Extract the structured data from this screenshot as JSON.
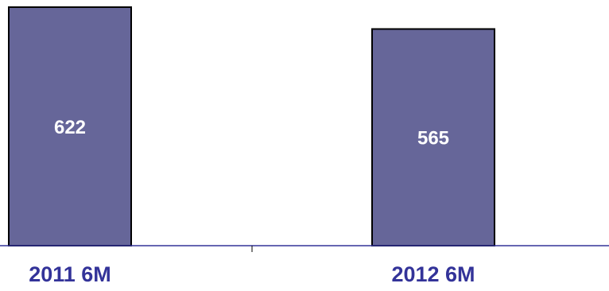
{
  "chart_data": {
    "type": "bar",
    "categories": [
      "2011 6M",
      "2012 6M"
    ],
    "values": [
      622,
      565
    ],
    "title": "",
    "xlabel": "",
    "ylabel": "",
    "grid": false,
    "legend": "none",
    "data_labels": [
      "622",
      "565"
    ]
  },
  "colors": {
    "bar_fill": "#666699",
    "bar_stroke": "#000000",
    "axis": "#333399",
    "data_label": "#ffffff",
    "category_label": "#333399",
    "background": "#ffffff"
  }
}
